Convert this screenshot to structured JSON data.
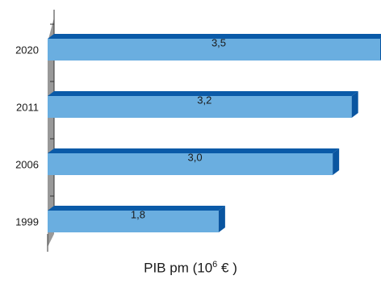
{
  "chart_data": {
    "type": "bar",
    "orientation": "horizontal",
    "categories": [
      "2020",
      "2011",
      "2006",
      "1999"
    ],
    "values": [
      3.5,
      3.2,
      3.0,
      1.8
    ],
    "value_labels": [
      "3,5",
      "3,2",
      "3,0",
      "1,8"
    ],
    "xlabel_parts": {
      "prefix": "PIB pm (10",
      "exponent": "6",
      "suffix": "  € )"
    },
    "ylabel": "",
    "title": "",
    "xlim": [
      0,
      3.5
    ],
    "grid": false,
    "style": "3d",
    "colors": {
      "bar_front": "#6aaee0",
      "bar_top": "#0a5aa8",
      "bar_side": "#0a55a0",
      "wall": "#999999"
    }
  }
}
